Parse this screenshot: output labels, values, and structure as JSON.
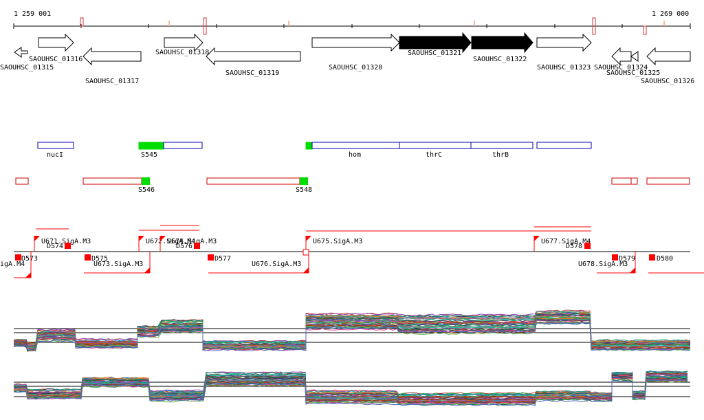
{
  "ruler": {
    "start_label": "1 259 001",
    "end_label": "1 269 000"
  },
  "genes": [
    {
      "id": "g1315",
      "label": "SAOUHSC_01315",
      "strand": "-",
      "filled": false
    },
    {
      "id": "g1316",
      "label": "SAOUHSC_01316",
      "strand": "+",
      "filled": false
    },
    {
      "id": "g1317",
      "label": "SAOUHSC_01317",
      "strand": "-",
      "filled": false
    },
    {
      "id": "g1318",
      "label": "SAOUHSC_01318",
      "strand": "+",
      "filled": false
    },
    {
      "id": "g1319",
      "label": "SAOUHSC_01319",
      "strand": "-",
      "filled": false
    },
    {
      "id": "g1320",
      "label": "SAOUHSC_01320",
      "strand": "+",
      "filled": false
    },
    {
      "id": "g1321",
      "label": "SAOUHSC_01321",
      "strand": "+",
      "filled": true
    },
    {
      "id": "g1322",
      "label": "SAOUHSC_01322",
      "strand": "+",
      "filled": true
    },
    {
      "id": "g1323",
      "label": "SAOUHSC_01323",
      "strand": "+",
      "filled": false
    },
    {
      "id": "g1324",
      "label": "SAOUHSC_01324",
      "strand": "-",
      "filled": false
    },
    {
      "id": "g1325",
      "label": "SAOUHSC_01325",
      "strand": "-",
      "filled": false
    },
    {
      "id": "g1326",
      "label": "SAOUHSC_01326",
      "strand": "-",
      "filled": false
    }
  ],
  "gene_names_track": [
    {
      "id": "nucI",
      "label": "nucI"
    },
    {
      "id": "S545",
      "label": "S545",
      "color": "#00dd00"
    },
    {
      "id": "hom",
      "label": "hom"
    },
    {
      "id": "thrC",
      "label": "thrC"
    },
    {
      "id": "thrB",
      "label": "thrB"
    }
  ],
  "red_feature_track": [
    {
      "id": "S546",
      "label": "S546",
      "color": "#00dd00"
    },
    {
      "id": "S548",
      "label": "S548",
      "color": "#00dd00"
    }
  ],
  "promoters": [
    {
      "id": "U671",
      "label": "U671.SigA.M3"
    },
    {
      "id": "U672",
      "label": "U672.SigA.M4"
    },
    {
      "id": "U674",
      "label": "U674.SigA.M3"
    },
    {
      "id": "U673",
      "label": "U673.SigA.M3"
    },
    {
      "id": "U675",
      "label": "U675.SigA.M3"
    },
    {
      "id": "U676",
      "label": "U676.SigA.M3"
    },
    {
      "id": "U677",
      "label": "U677.SigA.M4"
    },
    {
      "id": "U678",
      "label": "U678.SigA.M3"
    },
    {
      "id": "Uleft",
      "label": "igA.M4"
    }
  ],
  "terminators": [
    {
      "id": "D573",
      "label": "D573"
    },
    {
      "id": "D574",
      "label": "D574"
    },
    {
      "id": "D575",
      "label": "D575"
    },
    {
      "id": "D576",
      "label": "D576"
    },
    {
      "id": "D577",
      "label": "D577"
    },
    {
      "id": "D578",
      "label": "D578"
    },
    {
      "id": "D579",
      "label": "D579"
    },
    {
      "id": "D580",
      "label": "D580"
    }
  ],
  "colors": {
    "gene_outline": "#000000",
    "gene_fill": "#000000",
    "blue_feature": "#0000aa",
    "red_feature": "#cc0000",
    "green_feature": "#00dd00",
    "promoter": "#ff0000"
  }
}
